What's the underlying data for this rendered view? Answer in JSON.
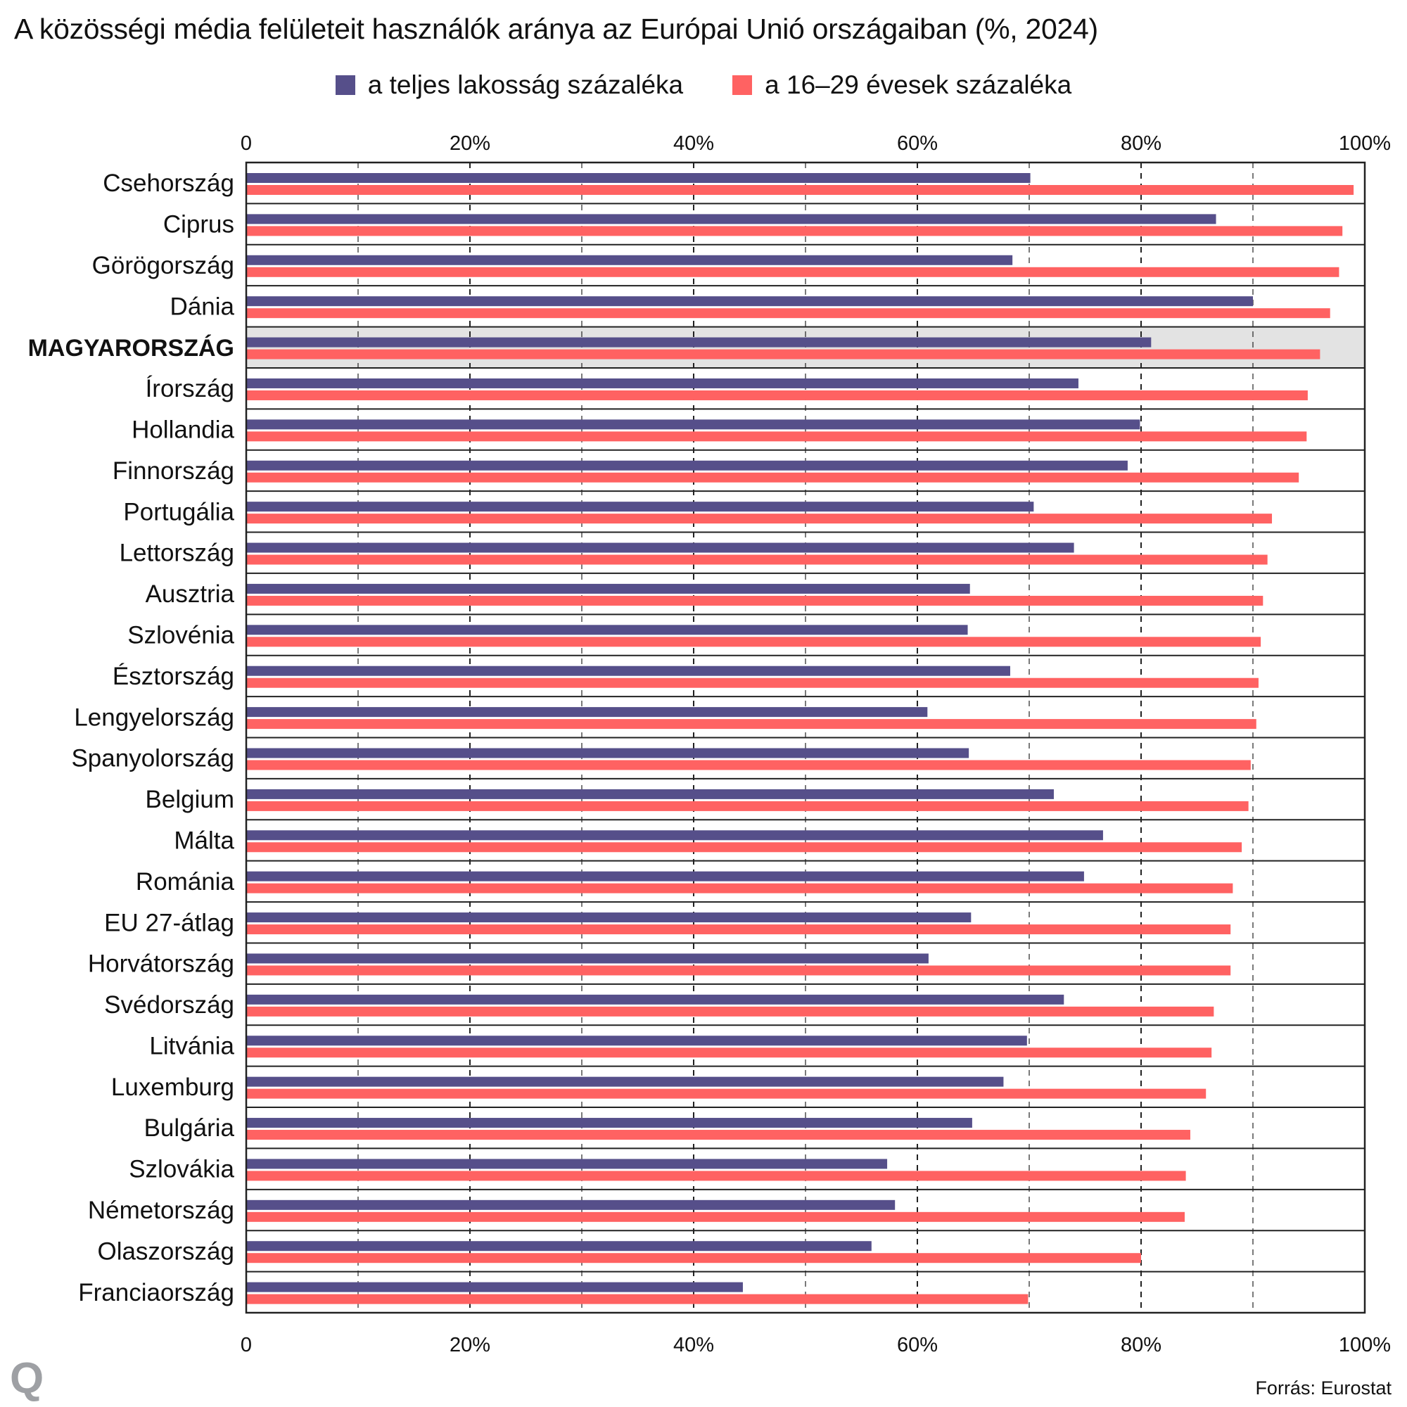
{
  "chart_data": {
    "type": "bar",
    "orientation": "horizontal",
    "title": "A közösségi média felületeit használók aránya az Európai Unió országaiban (%, 2024)",
    "xlabel": "",
    "ylabel": "",
    "xlim": [
      0,
      100
    ],
    "x_ticks": [
      "0",
      "20%",
      "40%",
      "60%",
      "80%",
      "100%"
    ],
    "x_tick_values": [
      0,
      20,
      40,
      60,
      80,
      100
    ],
    "grid": true,
    "legend_position": "top-center",
    "highlight_category": "MAGYARORSZÁG",
    "categories": [
      "Csehország",
      "Ciprus",
      "Görögország",
      "Dánia",
      "MAGYARORSZÁG",
      "Írország",
      "Hollandia",
      "Finnország",
      "Portugália",
      "Lettország",
      "Ausztria",
      "Szlovénia",
      "Észtország",
      "Lengyelország",
      "Spanyolország",
      "Belgium",
      "Málta",
      "Románia",
      "EU 27-átlag",
      "Horvátország",
      "Svédország",
      "Litvánia",
      "Luxemburg",
      "Bulgária",
      "Szlovákia",
      "Németország",
      "Olaszország",
      "Franciaország"
    ],
    "series": [
      {
        "name": "a teljes lakosság százaléka",
        "color": "#564f8a",
        "values": [
          70.1,
          86.7,
          68.5,
          90.0,
          80.9,
          74.4,
          79.9,
          78.8,
          70.4,
          74.0,
          64.7,
          64.5,
          68.3,
          60.9,
          64.6,
          72.2,
          76.6,
          74.9,
          64.8,
          61.0,
          73.1,
          69.8,
          67.7,
          64.9,
          57.3,
          58.0,
          55.9,
          44.4
        ]
      },
      {
        "name": "a 16–29 évesek százaléka",
        "color": "#ff6262",
        "values": [
          99.0,
          98.0,
          97.7,
          96.9,
          96.0,
          94.9,
          94.8,
          94.1,
          91.7,
          91.3,
          90.9,
          90.7,
          90.5,
          90.3,
          89.8,
          89.6,
          89.0,
          88.2,
          88.0,
          88.0,
          86.5,
          86.3,
          85.8,
          84.4,
          84.0,
          83.9,
          80.0,
          69.9
        ]
      }
    ]
  },
  "source": "Forrás: Eurostat",
  "logo": "Q"
}
